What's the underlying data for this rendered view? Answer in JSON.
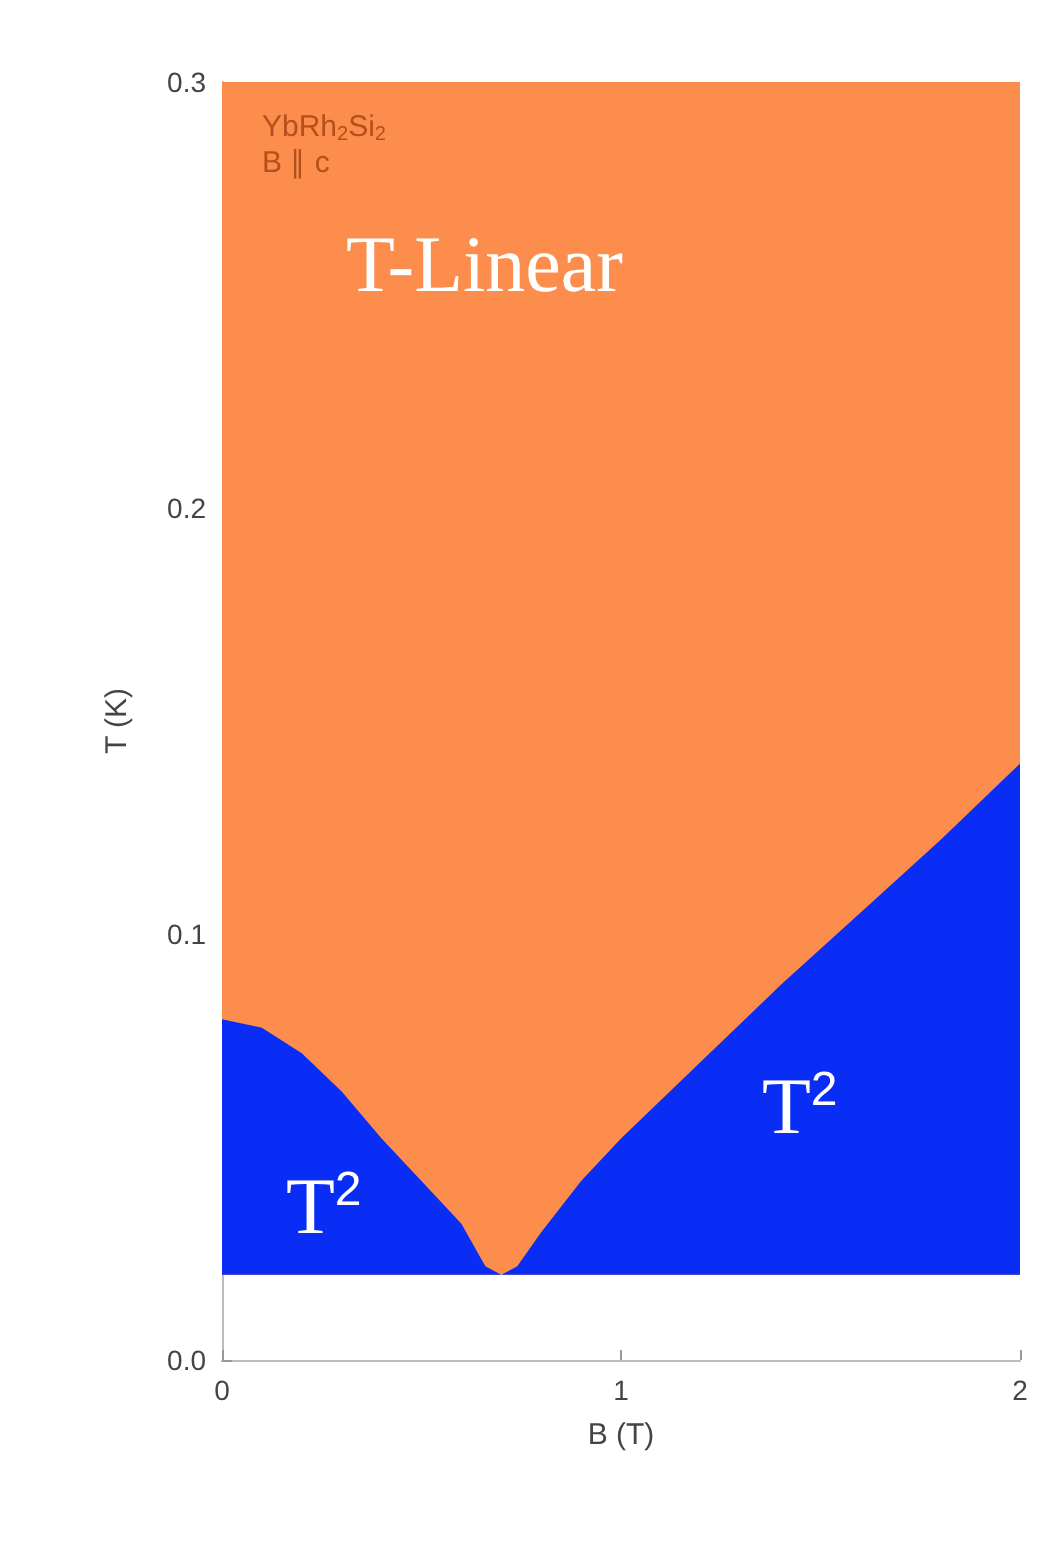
{
  "chart_data": {
    "type": "area",
    "xlabel": "B (T)",
    "ylabel": "T (K)",
    "xlim": [
      0,
      2
    ],
    "xticks": [
      0,
      1,
      2
    ],
    "ylim": [
      0,
      0.3
    ],
    "yticks": [
      {
        "value": 0,
        "label": "0.0"
      },
      {
        "value": 0.1,
        "label": "0.1"
      },
      {
        "value": 0.2,
        "label": "0.2"
      },
      {
        "value": 0.3,
        "label": "0.3"
      }
    ],
    "grid": false,
    "bands": [
      {
        "axis": "y",
        "from": 0.02,
        "to": 0.3,
        "color": "#fc8d4c"
      }
    ],
    "series": [
      {
        "color": "#0a2df5",
        "x": [
          0,
          0.1,
          0.2,
          0.3,
          0.4,
          0.5,
          0.6,
          0.66,
          0.7,
          0.74,
          0.8,
          0.9,
          1.0,
          1.2,
          1.4,
          1.6,
          1.8,
          2.0
        ],
        "values": [
          0.08,
          0.078,
          0.072,
          0.063,
          0.052,
          0.042,
          0.032,
          0.022,
          0.02,
          0.022,
          0.03,
          0.042,
          0.052,
          0.07,
          0.088,
          0.105,
          0.122,
          0.14
        ]
      }
    ],
    "annotations": [
      "YbRh$_{2}$Si$_{2}$",
      "B ∥ c",
      "T-Linear",
      "T$^{2}$",
      "T$^{2}$"
    ]
  }
}
